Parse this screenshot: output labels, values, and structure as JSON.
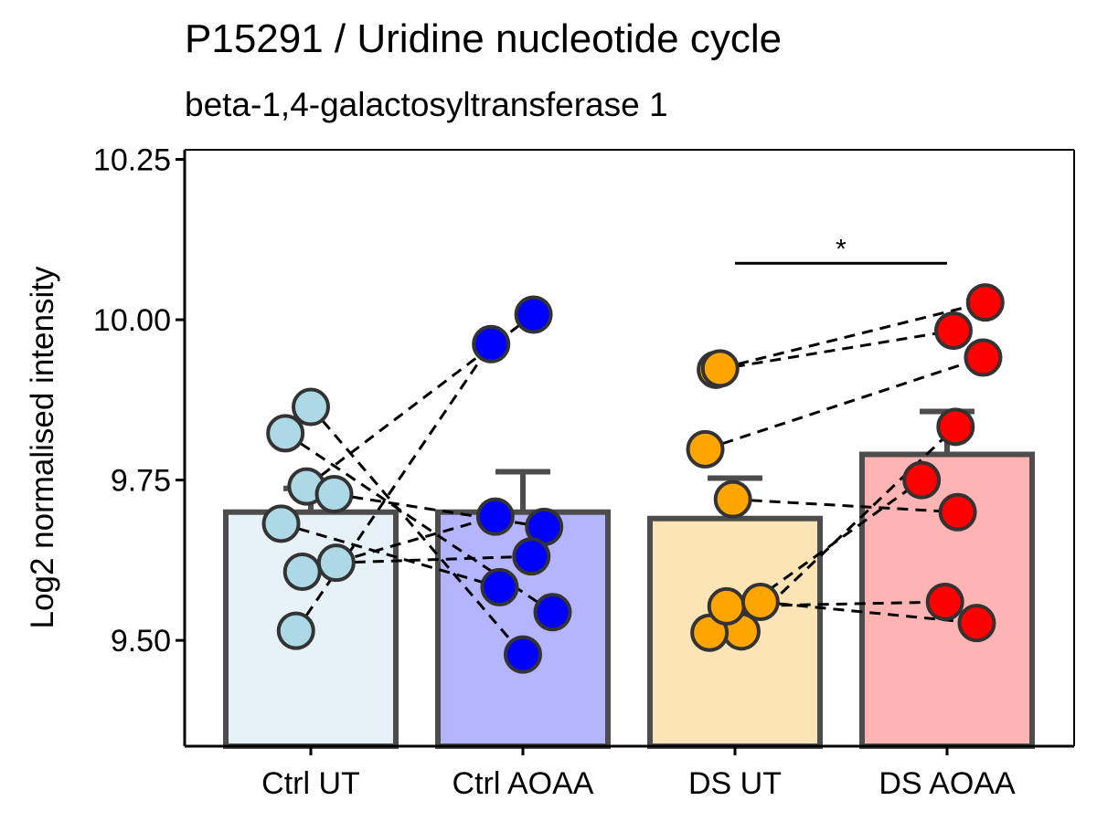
{
  "chart_data": {
    "type": "bar",
    "title": "P15291 / Uridine nucleotide cycle",
    "subtitle": "beta-1,4-galactosyltransferase 1",
    "xlabel": "",
    "ylabel": "Log2 normalised intensity",
    "ylim": [
      9.335,
      10.265
    ],
    "yticks": [
      "9.50",
      "9.75",
      "10.00",
      "10.25"
    ],
    "categories": [
      "Ctrl UT",
      "Ctrl AOAA",
      "DS UT",
      "DS AOAA"
    ],
    "bar_colors": [
      "#e6f1f8",
      "#b4b4ff",
      "#fde4b7",
      "#ffb4b4"
    ],
    "point_colors": [
      "#add8e6",
      "#0000ff",
      "#ffa500",
      "#ff0000"
    ],
    "edge_color": "#4d4d4d",
    "series": [
      {
        "values": [
          9.7,
          9.7,
          9.69,
          9.79
        ],
        "error_upper": [
          9.737,
          9.763,
          9.753,
          9.857
        ]
      }
    ],
    "points": [
      [
        {
          "dx": -0.07,
          "y": 9.515
        },
        {
          "dx": -0.04,
          "y": 9.607
        },
        {
          "dx": 0.12,
          "y": 9.621
        },
        {
          "dx": -0.14,
          "y": 9.682
        },
        {
          "dx": -0.02,
          "y": 9.74
        },
        {
          "dx": 0.11,
          "y": 9.728
        },
        {
          "dx": -0.12,
          "y": 9.823
        },
        {
          "dx": 0.0,
          "y": 9.864
        }
      ],
      [
        {
          "dx": -0.15,
          "y": 9.962
        },
        {
          "dx": 0.05,
          "y": 10.008
        },
        {
          "dx": -0.13,
          "y": 9.693
        },
        {
          "dx": 0.1,
          "y": 9.677
        },
        {
          "dx": 0.04,
          "y": 9.631
        },
        {
          "dx": -0.11,
          "y": 9.583
        },
        {
          "dx": 0.14,
          "y": 9.544
        },
        {
          "dx": 0.0,
          "y": 9.478
        }
      ],
      [
        {
          "dx": -0.09,
          "y": 9.922
        },
        {
          "dx": -0.07,
          "y": 9.924
        },
        {
          "dx": -0.14,
          "y": 9.798
        },
        {
          "dx": -0.01,
          "y": 9.72
        },
        {
          "dx": 0.03,
          "y": 9.514
        },
        {
          "dx": -0.12,
          "y": 9.512
        },
        {
          "dx": -0.04,
          "y": 9.553
        },
        {
          "dx": 0.12,
          "y": 9.56
        }
      ],
      [
        {
          "dx": 0.03,
          "y": 9.983
        },
        {
          "dx": 0.18,
          "y": 10.027
        },
        {
          "dx": 0.17,
          "y": 9.941
        },
        {
          "dx": 0.04,
          "y": 9.833
        },
        {
          "dx": -0.12,
          "y": 9.75
        },
        {
          "dx": 0.05,
          "y": 9.7
        },
        {
          "dx": -0.01,
          "y": 9.56
        },
        {
          "dx": 0.14,
          "y": 9.527
        }
      ]
    ],
    "paired_lines": [
      {
        "from": [
          0,
          0
        ],
        "to": [
          1,
          0
        ]
      },
      {
        "from": [
          0,
          1
        ],
        "to": [
          1,
          2
        ]
      },
      {
        "from": [
          0,
          2
        ],
        "to": [
          1,
          4
        ]
      },
      {
        "from": [
          0,
          3
        ],
        "to": [
          1,
          5
        ]
      },
      {
        "from": [
          0,
          4
        ],
        "to": [
          1,
          1
        ]
      },
      {
        "from": [
          0,
          5
        ],
        "to": [
          1,
          3
        ]
      },
      {
        "from": [
          0,
          6
        ],
        "to": [
          1,
          6
        ]
      },
      {
        "from": [
          0,
          7
        ],
        "to": [
          1,
          7
        ]
      },
      {
        "from": [
          2,
          0
        ],
        "to": [
          3,
          0
        ]
      },
      {
        "from": [
          2,
          1
        ],
        "to": [
          3,
          1
        ]
      },
      {
        "from": [
          2,
          2
        ],
        "to": [
          3,
          2
        ]
      },
      {
        "from": [
          2,
          3
        ],
        "to": [
          3,
          5
        ]
      },
      {
        "from": [
          2,
          4
        ],
        "to": [
          3,
          3
        ]
      },
      {
        "from": [
          2,
          5
        ],
        "to": [
          3,
          4
        ]
      },
      {
        "from": [
          2,
          6
        ],
        "to": [
          3,
          6
        ]
      },
      {
        "from": [
          2,
          7
        ],
        "to": [
          3,
          7
        ]
      }
    ],
    "significance": [
      {
        "from": "DS UT",
        "to": "DS AOAA",
        "y": 10.088,
        "label": "*"
      }
    ],
    "grid": false,
    "legend": "none"
  }
}
